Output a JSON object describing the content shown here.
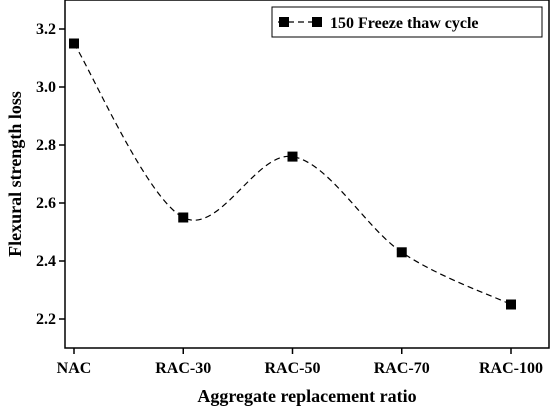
{
  "chart_data": {
    "type": "line",
    "categories": [
      "NAC",
      "RAC-30",
      "RAC-50",
      "RAC-70",
      "RAC-100"
    ],
    "series": [
      {
        "name": "150 Freeze thaw cycle",
        "values": [
          3.15,
          2.55,
          2.76,
          2.43,
          2.25
        ]
      }
    ],
    "xlabel": "Aggregate replacement ratio",
    "ylabel": "Flexural strength loss",
    "ylim": [
      2.1,
      3.3
    ],
    "yticks": [
      "2.2",
      "2.4",
      "2.6",
      "2.8",
      "3.0",
      "3.2"
    ],
    "line_style": "dashed",
    "marker": "square",
    "grid": false,
    "legend_position": "top-right",
    "colors": {
      "series": "#000000",
      "axis": "#000000",
      "background": "#ffffff"
    }
  }
}
